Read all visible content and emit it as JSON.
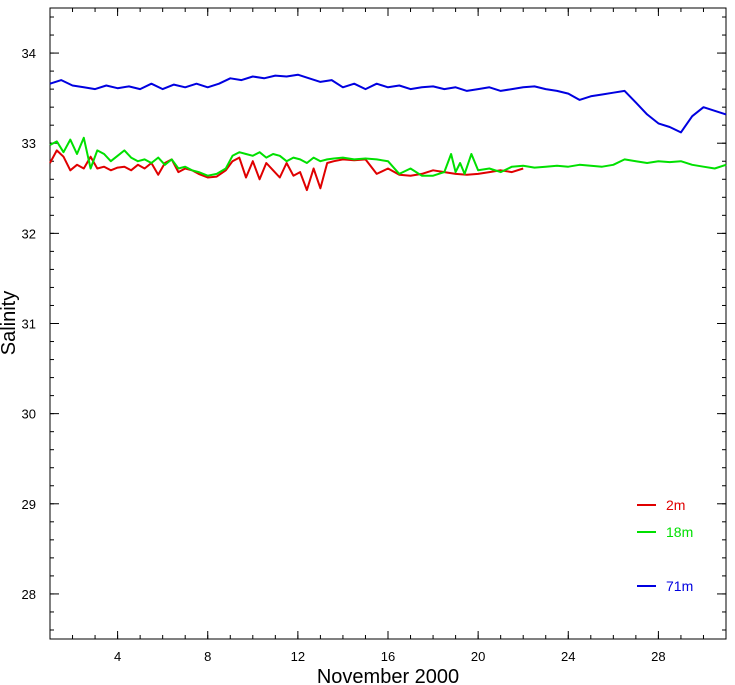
{
  "chart_data": {
    "type": "line",
    "title": "",
    "xlabel": "November 2000",
    "ylabel": "Salinity",
    "xlim": [
      1,
      31
    ],
    "ylim": [
      27.5,
      34.5
    ],
    "x_ticks": [
      4,
      8,
      12,
      16,
      20,
      24,
      28
    ],
    "y_ticks": [
      28,
      29,
      30,
      31,
      32,
      33,
      34
    ],
    "grid": false,
    "legend_position": "bottom-right",
    "series": [
      {
        "name": "2m",
        "color": "#e00000",
        "x": [
          1.0,
          1.3,
          1.6,
          1.9,
          2.2,
          2.5,
          2.8,
          3.1,
          3.4,
          3.7,
          4.0,
          4.3,
          4.6,
          4.9,
          5.2,
          5.5,
          5.8,
          6.1,
          6.4,
          6.7,
          7.0,
          7.3,
          7.6,
          8.0,
          8.4,
          8.8,
          9.1,
          9.4,
          9.7,
          10.0,
          10.3,
          10.6,
          10.9,
          11.2,
          11.5,
          11.8,
          12.1,
          12.4,
          12.7,
          13.0,
          13.3,
          13.6,
          14.0,
          14.5,
          15.0,
          15.5,
          16.0,
          16.5,
          17.0,
          17.5,
          18.0,
          18.5,
          19.0,
          19.5,
          20.0,
          20.5,
          21.0,
          21.5,
          22.0
        ],
        "values": [
          32.78,
          32.92,
          32.85,
          32.7,
          32.76,
          32.72,
          32.85,
          32.72,
          32.74,
          32.7,
          32.73,
          32.74,
          32.7,
          32.76,
          32.72,
          32.78,
          32.65,
          32.78,
          32.82,
          32.68,
          32.72,
          32.7,
          32.66,
          32.62,
          32.63,
          32.7,
          32.8,
          32.84,
          32.62,
          32.8,
          32.6,
          32.78,
          32.7,
          32.62,
          32.78,
          32.64,
          32.68,
          32.48,
          32.72,
          32.5,
          32.78,
          32.8,
          32.82,
          32.81,
          32.82,
          32.66,
          32.72,
          32.65,
          32.64,
          32.66,
          32.7,
          32.68,
          32.66,
          32.65,
          32.66,
          32.68,
          32.7,
          32.68,
          32.72
        ]
      },
      {
        "name": "18m",
        "color": "#00e000",
        "x": [
          1.0,
          1.3,
          1.6,
          1.9,
          2.2,
          2.5,
          2.8,
          3.1,
          3.4,
          3.7,
          4.0,
          4.3,
          4.6,
          4.9,
          5.2,
          5.5,
          5.8,
          6.1,
          6.4,
          6.7,
          7.0,
          7.3,
          7.6,
          8.0,
          8.4,
          8.8,
          9.1,
          9.4,
          9.7,
          10.0,
          10.3,
          10.6,
          10.9,
          11.2,
          11.5,
          11.8,
          12.1,
          12.4,
          12.7,
          13.0,
          13.3,
          13.6,
          14.0,
          14.5,
          15.0,
          15.5,
          16.0,
          16.5,
          17.0,
          17.5,
          18.0,
          18.5,
          18.8,
          19.0,
          19.2,
          19.4,
          19.7,
          20.0,
          20.5,
          21.0,
          21.5,
          22.0,
          22.5,
          23.0,
          23.5,
          24.0,
          24.5,
          25.0,
          25.5,
          26.0,
          26.5,
          27.0,
          27.5,
          28.0,
          28.5,
          29.0,
          29.5,
          30.0,
          30.5,
          31.0
        ],
        "values": [
          32.98,
          33.02,
          32.9,
          33.04,
          32.88,
          33.06,
          32.72,
          32.92,
          32.88,
          32.8,
          32.86,
          32.92,
          32.84,
          32.8,
          32.82,
          32.78,
          32.84,
          32.76,
          32.82,
          32.72,
          32.74,
          32.7,
          32.68,
          32.64,
          32.66,
          32.72,
          32.86,
          32.9,
          32.88,
          32.86,
          32.9,
          32.84,
          32.88,
          32.86,
          32.8,
          32.84,
          32.82,
          32.78,
          32.84,
          32.8,
          32.82,
          32.83,
          32.84,
          32.82,
          32.83,
          32.82,
          32.8,
          32.66,
          32.72,
          32.64,
          32.64,
          32.68,
          32.88,
          32.68,
          32.78,
          32.66,
          32.88,
          32.7,
          32.72,
          32.68,
          32.74,
          32.75,
          32.73,
          32.74,
          32.75,
          32.74,
          32.76,
          32.75,
          32.74,
          32.76,
          32.82,
          32.8,
          32.78,
          32.8,
          32.79,
          32.8,
          32.76,
          32.74,
          32.72,
          32.76
        ]
      },
      {
        "name": "71m",
        "color": "#0000e0",
        "x": [
          1.0,
          1.5,
          2.0,
          2.5,
          3.0,
          3.5,
          4.0,
          4.5,
          5.0,
          5.5,
          6.0,
          6.5,
          7.0,
          7.5,
          8.0,
          8.5,
          9.0,
          9.5,
          10.0,
          10.5,
          11.0,
          11.5,
          12.0,
          12.5,
          13.0,
          13.5,
          14.0,
          14.5,
          15.0,
          15.5,
          16.0,
          16.5,
          17.0,
          17.5,
          18.0,
          18.5,
          19.0,
          19.5,
          20.0,
          20.5,
          21.0,
          21.5,
          22.0,
          22.5,
          23.0,
          23.5,
          24.0,
          24.5,
          25.0,
          25.5,
          26.0,
          26.5,
          27.0,
          27.5,
          28.0,
          28.5,
          29.0,
          29.5,
          30.0,
          30.5,
          31.0
        ],
        "values": [
          33.66,
          33.7,
          33.64,
          33.62,
          33.6,
          33.64,
          33.61,
          33.63,
          33.6,
          33.66,
          33.6,
          33.65,
          33.62,
          33.66,
          33.62,
          33.66,
          33.72,
          33.7,
          33.74,
          33.72,
          33.75,
          33.74,
          33.76,
          33.72,
          33.68,
          33.7,
          33.62,
          33.66,
          33.6,
          33.66,
          33.62,
          33.64,
          33.6,
          33.62,
          33.63,
          33.6,
          33.62,
          33.58,
          33.6,
          33.62,
          33.58,
          33.6,
          33.62,
          33.63,
          33.6,
          33.58,
          33.55,
          33.48,
          33.52,
          33.54,
          33.56,
          33.58,
          33.45,
          33.32,
          33.22,
          33.18,
          33.12,
          33.3,
          33.4,
          33.36,
          33.32
        ]
      }
    ]
  }
}
